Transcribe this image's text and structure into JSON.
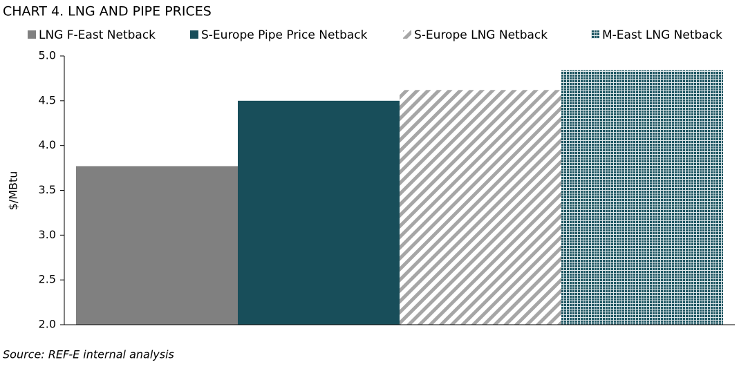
{
  "chart_data": {
    "type": "bar",
    "title": "CHART 4. LNG AND PIPE PRICES",
    "y_label": "$/MBtu",
    "source": "Source: REF-E internal analysis",
    "series": [
      {
        "name": "LNG F-East Netback",
        "color": "#808080",
        "pattern": "solid",
        "values": [
          3.77
        ]
      },
      {
        "name": "S-Europe Pipe Price Netback",
        "color": "#184e5a",
        "pattern": "solid",
        "values": [
          4.5
        ]
      },
      {
        "name": "S-Europe LNG  Netback",
        "color": "#a6a6a6",
        "pattern": "diagonal",
        "values": [
          4.62
        ]
      },
      {
        "name": "M-East LNG Netback",
        "color": "#1f5763",
        "pattern": "dots",
        "values": [
          4.84
        ]
      }
    ],
    "ylim": [
      2,
      5
    ],
    "yticks": [
      {
        "value": 2,
        "label": "2.0"
      },
      2.5,
      {
        "value": 3,
        "label": "3.0"
      },
      3.5,
      {
        "value": 4,
        "label": "4.0"
      },
      4.5,
      {
        "value": 5,
        "label": "5.0"
      }
    ],
    "grid": false
  }
}
